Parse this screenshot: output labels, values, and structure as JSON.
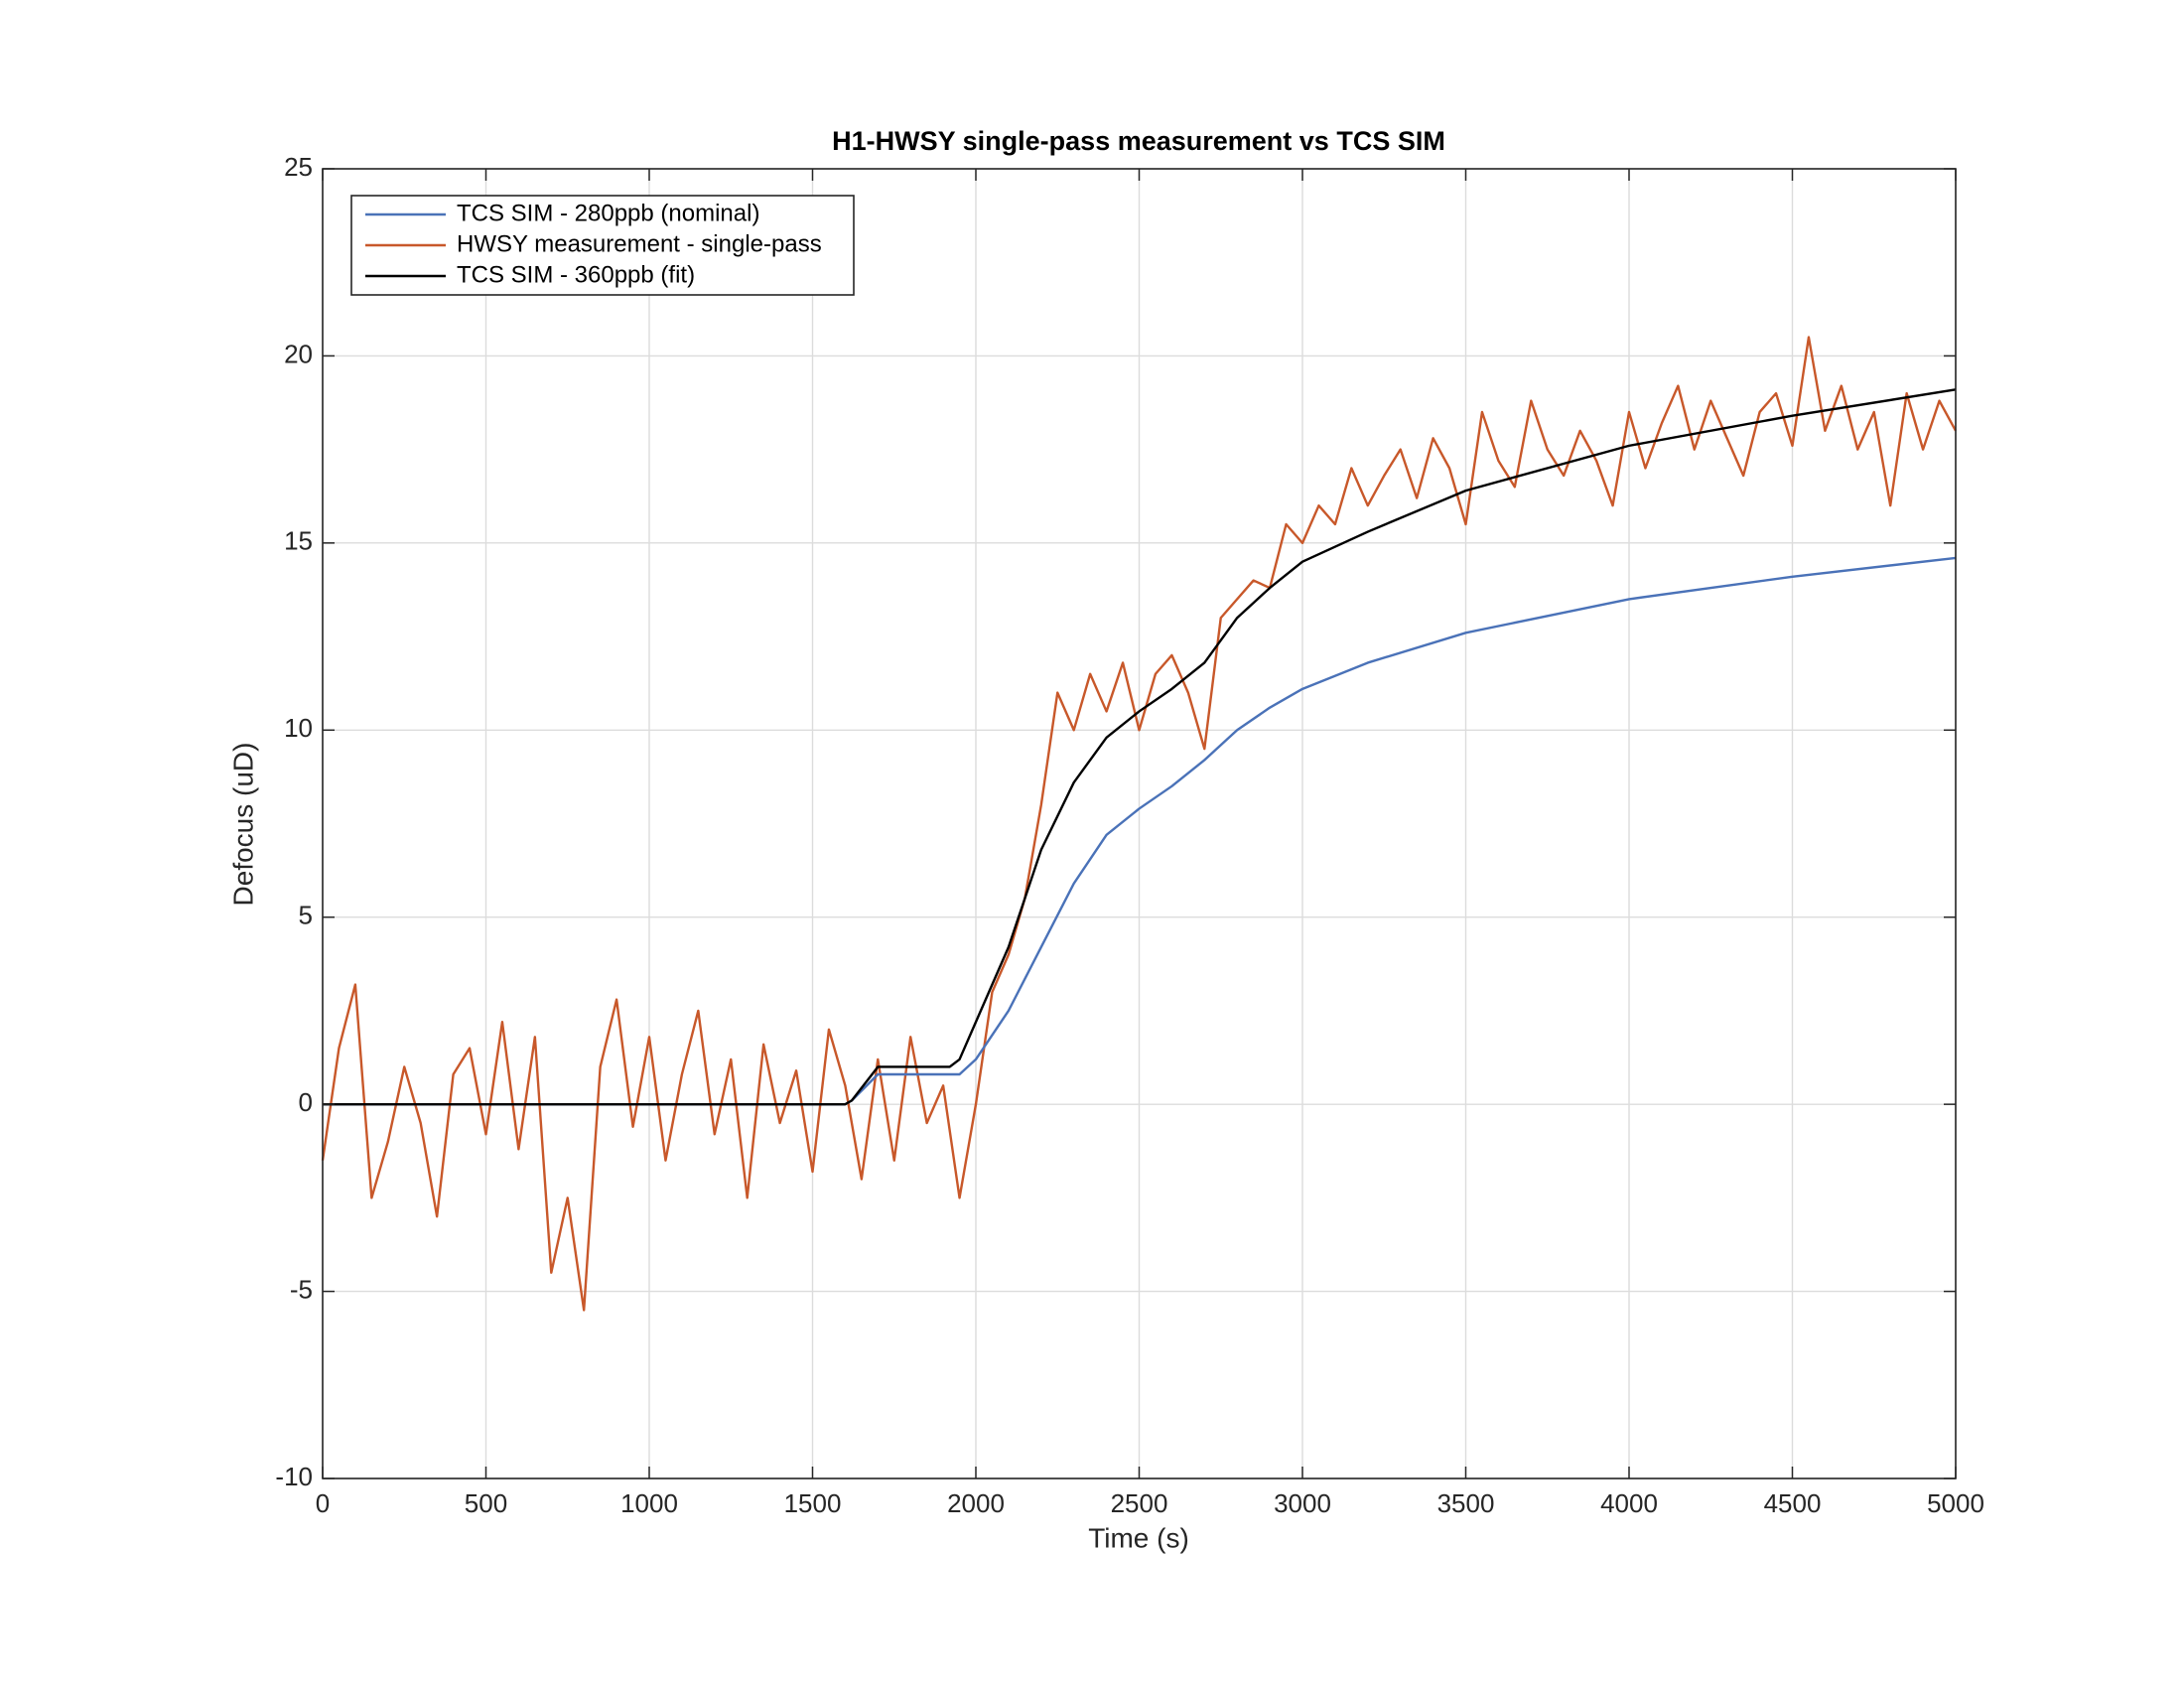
{
  "chart_data": {
    "type": "line",
    "title": "H1-HWSY single-pass measurement vs TCS SIM",
    "xlabel": "Time (s)",
    "ylabel": "Defocus (uD)",
    "xlim": [
      0,
      5000
    ],
    "ylim": [
      -10,
      25
    ],
    "xticks": [
      0,
      500,
      1000,
      1500,
      2000,
      2500,
      3000,
      3500,
      4000,
      4500,
      5000
    ],
    "yticks": [
      -10,
      -5,
      0,
      5,
      10,
      15,
      20,
      25
    ],
    "grid": true,
    "legend": "upper left",
    "series": [
      {
        "name": "TCS SIM - 280ppb (nominal)",
        "color": "#4a72b8",
        "x": [
          0,
          1600,
          1620,
          1700,
          1950,
          2000,
          2100,
          2200,
          2300,
          2400,
          2500,
          2600,
          2700,
          2800,
          2900,
          3000,
          3200,
          3500,
          4000,
          4500,
          5000
        ],
        "values": [
          0,
          0,
          0.1,
          0.8,
          0.8,
          1.2,
          2.5,
          4.2,
          5.9,
          7.2,
          7.9,
          8.5,
          9.2,
          10,
          10.6,
          11.1,
          11.8,
          12.6,
          13.5,
          14.1,
          14.6
        ]
      },
      {
        "name": "HWSY measurement - single-pass",
        "color": "#c8582a",
        "x": [
          0,
          50,
          100,
          150,
          200,
          250,
          300,
          350,
          400,
          450,
          500,
          550,
          600,
          650,
          700,
          750,
          800,
          850,
          900,
          950,
          1000,
          1050,
          1100,
          1150,
          1200,
          1250,
          1300,
          1350,
          1400,
          1450,
          1500,
          1550,
          1600,
          1650,
          1700,
          1750,
          1800,
          1850,
          1900,
          1950,
          2000,
          2050,
          2100,
          2150,
          2200,
          2250,
          2300,
          2350,
          2400,
          2450,
          2500,
          2550,
          2600,
          2650,
          2700,
          2750,
          2800,
          2850,
          2900,
          2950,
          3000,
          3050,
          3100,
          3150,
          3200,
          3250,
          3300,
          3350,
          3400,
          3450,
          3500,
          3550,
          3600,
          3650,
          3700,
          3750,
          3800,
          3850,
          3900,
          3950,
          4000,
          4050,
          4100,
          4150,
          4200,
          4250,
          4300,
          4350,
          4400,
          4450,
          4500,
          4550,
          4600,
          4650,
          4700,
          4750,
          4800,
          4850,
          4900,
          4950,
          5000
        ],
        "values": [
          -1.5,
          1.5,
          3.2,
          -2.5,
          -1,
          1,
          -0.5,
          -3,
          0.8,
          1.5,
          -0.8,
          2.2,
          -1.2,
          1.8,
          -4.5,
          -2.5,
          -5.5,
          1,
          2.8,
          -0.6,
          1.8,
          -1.5,
          0.8,
          2.5,
          -0.8,
          1.2,
          -2.5,
          1.6,
          -0.5,
          0.9,
          -1.8,
          2,
          0.5,
          -2,
          1.2,
          -1.5,
          1.8,
          -0.5,
          0.5,
          -2.5,
          0,
          3,
          4,
          5.5,
          8,
          11,
          10,
          11.5,
          10.5,
          11.8,
          10,
          11.5,
          12,
          11,
          9.5,
          13,
          13.5,
          14,
          13.8,
          15.5,
          15,
          16,
          15.5,
          17,
          16,
          16.8,
          17.5,
          16.2,
          17.8,
          17,
          15.5,
          18.5,
          17.2,
          16.5,
          18.8,
          17.5,
          16.8,
          18,
          17.2,
          16,
          18.5,
          17,
          18.2,
          19.2,
          17.5,
          18.8,
          17.8,
          16.8,
          18.5,
          19,
          17.6,
          20.5,
          18,
          19.2,
          17.5,
          18.5,
          16,
          19,
          17.5,
          18.8,
          18
        ]
      },
      {
        "name": "TCS SIM - 360ppb (fit)",
        "color": "#000000",
        "x": [
          0,
          1600,
          1620,
          1700,
          1920,
          1950,
          2000,
          2100,
          2200,
          2300,
          2400,
          2500,
          2600,
          2700,
          2800,
          2900,
          3000,
          3200,
          3500,
          4000,
          4500,
          5000
        ],
        "values": [
          0,
          0,
          0.1,
          1,
          1,
          1.2,
          2.2,
          4.2,
          6.8,
          8.6,
          9.8,
          10.5,
          11.1,
          11.8,
          13,
          13.8,
          14.5,
          15.3,
          16.4,
          17.6,
          18.4,
          19.1
        ]
      }
    ]
  }
}
